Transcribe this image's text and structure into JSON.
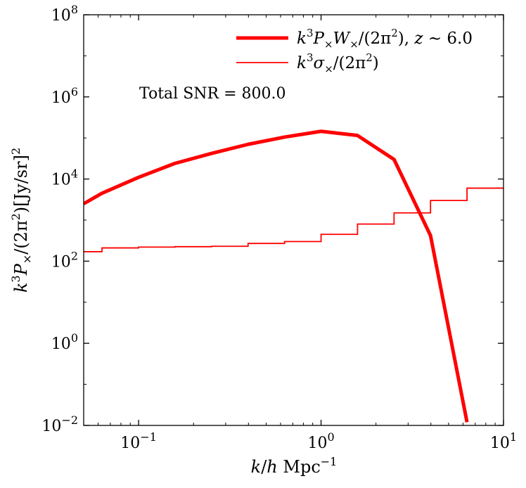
{
  "chart_data": {
    "type": "line",
    "title": "",
    "xlabel": "k/h Mpc^-1",
    "ylabel": "k^3 P_x/(2π^2) [Jy/sr]^2",
    "xscale": "log",
    "yscale": "log",
    "xlim": [
      0.05,
      10
    ],
    "ylim": [
      0.01,
      100000000
    ],
    "x_ticks": [
      {
        "value": 0.1,
        "base": "10",
        "exp": "−1"
      },
      {
        "value": 1,
        "base": "10",
        "exp": "0"
      },
      {
        "value": 10,
        "base": "10",
        "exp": "1"
      }
    ],
    "y_ticks": [
      {
        "value": 0.01,
        "base": "10",
        "exp": "−2"
      },
      {
        "value": 1,
        "base": "10",
        "exp": "0"
      },
      {
        "value": 100,
        "base": "10",
        "exp": "2"
      },
      {
        "value": 10000,
        "base": "10",
        "exp": "4"
      },
      {
        "value": 1000000,
        "base": "10",
        "exp": "6"
      },
      {
        "value": 100000000,
        "base": "10",
        "exp": "8"
      }
    ],
    "legend_position": "top-right",
    "annotation": "Total SNR = 800.0",
    "series": [
      {
        "name": "k³P×W×/(2π²), z ∼ 6.0",
        "style": "thick-line",
        "color": "#ff0000",
        "x": [
          0.05,
          0.063,
          0.1,
          0.158,
          0.251,
          0.398,
          0.631,
          1.0,
          1.585,
          2.512,
          3.981,
          6.31
        ],
        "y": [
          2500,
          4500,
          11000,
          24000,
          42000,
          70000,
          105000,
          145000,
          115000,
          30000,
          420,
          0.012
        ]
      },
      {
        "name": "k³σ×/(2π²)",
        "style": "thin-step",
        "color": "#ff0000",
        "x": [
          0.05,
          0.063,
          0.1,
          0.158,
          0.251,
          0.398,
          0.631,
          1.0,
          1.585,
          2.512,
          3.981,
          6.31,
          10.0
        ],
        "y": [
          170,
          210,
          220,
          225,
          230,
          270,
          300,
          450,
          800,
          1500,
          3000,
          6000,
          6000
        ]
      }
    ]
  }
}
